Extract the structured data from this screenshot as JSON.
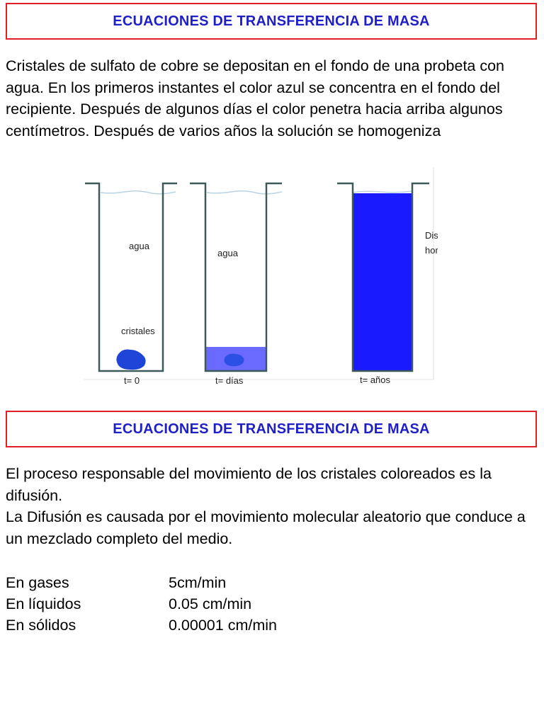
{
  "slide1": {
    "title": "ECUACIONES DE TRANSFERENCIA DE MASA",
    "text": "Cristales de sulfato de cobre se depositan en el fondo de una probeta con agua.  En los primeros instantes el color azul se concentra en el fondo del recipiente. Después de algunos días el color penetra hacia arriba algunos centímetros. Después de varios años la solución se homogeniza",
    "diagram": {
      "label_water_1": "agua",
      "label_crystals": "cristales",
      "label_water_2": "agua",
      "label_solution_line1": "Disolución",
      "label_solution_line2": "homogénea",
      "caption_1": "t= 0",
      "caption_2": "t= días",
      "caption_3": "t= años",
      "colors": {
        "vessel": "#3c5a5a",
        "blue_solution": "#1a1aff",
        "light_blue": "#6a6aff",
        "crystal": "#1e44d8"
      }
    }
  },
  "slide2": {
    "title": "ECUACIONES DE TRANSFERENCIA DE MASA",
    "text_line1": "El proceso responsable del movimiento de los cristales coloreados es la difusión.",
    "text_line2": "La Difusión es causada por el movimiento molecular aleatorio que conduce a un mezclado completo del medio.",
    "rates": [
      {
        "label": "En gases",
        "value": "5cm/min"
      },
      {
        "label": "En líquidos",
        "value": "0.05 cm/min"
      },
      {
        "label": "En sólidos",
        "value": "0.00001 cm/min"
      }
    ]
  },
  "colors": {
    "title_text": "#1f1fc8",
    "title_border": "#e41e26"
  }
}
